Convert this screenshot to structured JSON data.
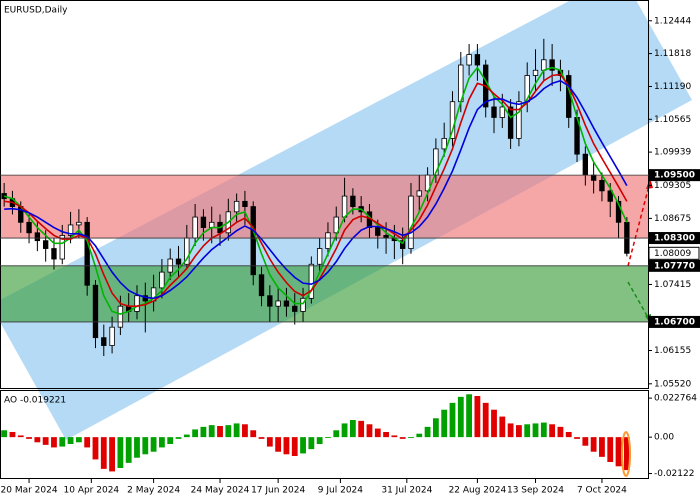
{
  "chart_data": [
    {
      "type": "candlestick",
      "title": "EURUSD,Daily",
      "candles": {
        "open": [
          1.0915,
          1.0905,
          1.089,
          1.086,
          1.084,
          1.0825,
          1.081,
          1.079,
          1.0835,
          1.0855,
          1.086,
          1.074,
          1.064,
          1.0625,
          1.066,
          1.07,
          1.069,
          1.072,
          1.071,
          1.0735,
          1.0765,
          1.079,
          1.078,
          1.083,
          1.087,
          1.085,
          1.086,
          1.084,
          1.088,
          1.09,
          1.089,
          1.076,
          1.072,
          1.07,
          1.071,
          1.07,
          1.069,
          1.0715,
          1.078,
          1.081,
          1.084,
          1.087,
          1.091,
          1.089,
          1.088,
          1.085,
          1.0835,
          1.083,
          1.0825,
          1.081,
          1.091,
          1.092,
          1.095,
          1.1,
          1.102,
          1.109,
          1.116,
          1.118,
          1.116,
          1.108,
          1.106,
          1.108,
          1.102,
          1.109,
          1.114,
          1.115,
          1.117,
          1.115,
          1.114,
          1.106,
          1.099,
          1.095,
          1.094,
          1.092,
          1.09,
          1.086
        ],
        "high": [
          1.0935,
          1.092,
          1.09,
          1.0875,
          1.086,
          1.0845,
          1.083,
          1.0855,
          1.088,
          1.0885,
          1.087,
          1.075,
          1.0665,
          1.068,
          1.072,
          1.0725,
          1.074,
          1.0745,
          1.076,
          1.079,
          1.081,
          1.0815,
          1.0855,
          1.0895,
          1.0885,
          1.089,
          1.0875,
          1.0905,
          1.0915,
          1.092,
          1.09,
          1.0775,
          1.074,
          1.0735,
          1.0735,
          1.0725,
          1.0735,
          1.0795,
          1.083,
          1.086,
          1.089,
          1.0945,
          1.0925,
          1.091,
          1.0895,
          1.0865,
          1.086,
          1.0855,
          1.085,
          1.0935,
          1.095,
          1.0965,
          1.102,
          1.105,
          1.111,
          1.1185,
          1.12,
          1.12,
          1.117,
          1.11,
          1.1105,
          1.1095,
          1.111,
          1.1165,
          1.119,
          1.121,
          1.12,
          1.117,
          1.115,
          1.1075,
          1.1005,
          1.0975,
          1.0955,
          1.0935,
          1.091,
          1.087
        ],
        "low": [
          1.089,
          1.0875,
          1.084,
          1.082,
          1.0805,
          1.0785,
          1.077,
          1.078,
          1.082,
          1.083,
          1.072,
          1.062,
          1.0605,
          1.061,
          1.0645,
          1.067,
          1.0675,
          1.065,
          1.069,
          1.0715,
          1.075,
          1.0755,
          1.077,
          1.0815,
          1.0825,
          1.082,
          1.0815,
          1.0825,
          1.086,
          1.0855,
          1.074,
          1.07,
          1.067,
          1.067,
          1.068,
          1.0665,
          1.067,
          1.0705,
          1.0765,
          1.0795,
          1.0825,
          1.086,
          1.0875,
          1.086,
          1.083,
          1.081,
          1.08,
          1.079,
          1.078,
          1.08,
          1.088,
          1.09,
          1.0935,
          1.0985,
          1.1005,
          1.107,
          1.114,
          1.113,
          1.106,
          1.103,
          1.104,
          1.1,
          1.1005,
          1.107,
          1.111,
          1.113,
          1.112,
          1.111,
          1.104,
          1.0975,
          1.093,
          1.0915,
          1.09,
          1.087,
          1.083,
          1.0795
        ],
        "close": [
          1.0905,
          1.089,
          1.086,
          1.084,
          1.0825,
          1.081,
          1.079,
          1.0835,
          1.0855,
          1.086,
          1.074,
          1.064,
          1.0625,
          1.066,
          1.07,
          1.069,
          1.072,
          1.071,
          1.0735,
          1.0765,
          1.079,
          1.078,
          1.083,
          1.087,
          1.085,
          1.086,
          1.084,
          1.088,
          1.09,
          1.089,
          1.076,
          1.072,
          1.07,
          1.071,
          1.07,
          1.069,
          1.0715,
          1.078,
          1.081,
          1.084,
          1.087,
          1.091,
          1.089,
          1.088,
          1.085,
          1.0835,
          1.083,
          1.0825,
          1.081,
          1.091,
          1.092,
          1.095,
          1.1,
          1.102,
          1.109,
          1.116,
          1.118,
          1.116,
          1.108,
          1.106,
          1.108,
          1.102,
          1.109,
          1.114,
          1.115,
          1.117,
          1.115,
          1.114,
          1.106,
          1.099,
          1.095,
          1.094,
          1.092,
          1.09,
          1.086,
          1.08009
        ]
      },
      "series": [
        {
          "color": "#00b400",
          "values": [
            1.091,
            1.0905,
            1.089,
            1.087,
            1.085,
            1.0835,
            1.082,
            1.082,
            1.083,
            1.0845,
            1.0825,
            1.0775,
            1.072,
            1.069,
            1.0685,
            1.069,
            1.07,
            1.0705,
            1.0715,
            1.073,
            1.0755,
            1.077,
            1.079,
            1.082,
            1.084,
            1.085,
            1.085,
            1.086,
            1.0875,
            1.088,
            1.0845,
            1.08,
            1.076,
            1.0735,
            1.072,
            1.0705,
            1.0705,
            1.073,
            1.0765,
            1.08,
            1.0835,
            1.087,
            1.0885,
            1.0885,
            1.087,
            1.0855,
            1.084,
            1.083,
            1.082,
            1.085,
            1.088,
            1.0915,
            1.0955,
            1.099,
            1.1035,
            1.109,
            1.1135,
            1.1155,
            1.113,
            1.11,
            1.1085,
            1.106,
            1.107,
            1.1095,
            1.1125,
            1.115,
            1.1155,
            1.115,
            1.1115,
            1.106,
            1.101,
            1.0975,
            1.095,
            1.0925,
            1.0895,
            1.086
          ]
        },
        {
          "color": "#d00000",
          "values": [
            1.09,
            1.0898,
            1.089,
            1.0878,
            1.0862,
            1.0848,
            1.0835,
            1.0828,
            1.0828,
            1.0835,
            1.083,
            1.08,
            1.076,
            1.0725,
            1.0705,
            1.07,
            1.07,
            1.0703,
            1.071,
            1.0722,
            1.074,
            1.0755,
            1.0772,
            1.0795,
            1.0815,
            1.083,
            1.0838,
            1.0848,
            1.086,
            1.0868,
            1.085,
            1.082,
            1.079,
            1.0765,
            1.0745,
            1.0728,
            1.072,
            1.073,
            1.0752,
            1.078,
            1.081,
            1.0845,
            1.0865,
            1.0872,
            1.0868,
            1.0858,
            1.0848,
            1.0838,
            1.0828,
            1.0845,
            1.0865,
            1.0893,
            1.0928,
            1.0962,
            1.1,
            1.105,
            1.1095,
            1.1125,
            1.112,
            1.1105,
            1.1092,
            1.1075,
            1.1075,
            1.1088,
            1.111,
            1.113,
            1.114,
            1.1142,
            1.112,
            1.1085,
            1.1045,
            1.101,
            1.0982,
            1.0955,
            1.0928,
            1.09
          ]
        },
        {
          "color": "#0000dd",
          "values": [
            1.0885,
            1.0886,
            1.0884,
            1.0878,
            1.087,
            1.086,
            1.085,
            1.0842,
            1.0838,
            1.0838,
            1.0833,
            1.0815,
            1.079,
            1.0765,
            1.0745,
            1.073,
            1.0722,
            1.0717,
            1.0715,
            1.072,
            1.073,
            1.0742,
            1.0756,
            1.0774,
            1.0792,
            1.0808,
            1.082,
            1.0832,
            1.0844,
            1.0853,
            1.0845,
            1.0828,
            1.0808,
            1.0788,
            1.077,
            1.0755,
            1.0744,
            1.0742,
            1.075,
            1.0765,
            1.0785,
            1.081,
            1.083,
            1.0845,
            1.0852,
            1.0852,
            1.0848,
            1.0842,
            1.0835,
            1.084,
            1.0852,
            1.087,
            1.0895,
            1.0925,
            1.0958,
            1.0998,
            1.104,
            1.1075,
            1.109,
            1.1095,
            1.1095,
            1.1088,
            1.1085,
            1.109,
            1.11,
            1.1115,
            1.1125,
            1.113,
            1.112,
            1.1098,
            1.107,
            1.104,
            1.1012,
            1.0985,
            1.0958,
            1.093
          ]
        }
      ],
      "levels": [
        {
          "value": 1.095,
          "label": "1.09500"
        },
        {
          "value": 1.083,
          "label": "1.08300"
        },
        {
          "value": 1.0777,
          "label": "1.07770"
        },
        {
          "value": 1.067,
          "label": "1.06700"
        }
      ],
      "zone_colors": [
        "#f07878",
        "#3f9f3f"
      ],
      "ylim": [
        1.0544,
        1.1284
      ],
      "yticks": [
        1.12444,
        1.11818,
        {
          "value": 1.1119,
          "label": "1.11190"
        },
        1.10565,
        1.09939,
        1.09305,
        1.08675,
        1.07415,
        1.06155,
        {
          "value": 1.0552,
          "label": "1.05520"
        }
      ],
      "xlim": [
        -0.5,
        75.5
      ],
      "xticks": [
        {
          "value": 3,
          "label": "20 Mar 2024"
        },
        {
          "value": 10.5,
          "label": "10 Apr 2024"
        },
        {
          "value": 18,
          "label": "2 May 2024"
        },
        {
          "value": 26,
          "label": "24 May 2024"
        },
        {
          "value": 33,
          "label": "17 Jun 2024"
        },
        {
          "value": 40.5,
          "label": "9 Jul 2024"
        },
        {
          "value": 48.5,
          "label": "31 Jul 2024"
        },
        {
          "value": 57,
          "label": "22 Aug 2024"
        },
        {
          "value": 64,
          "label": "13 Sep 2024"
        },
        {
          "value": 72,
          "label": "7 Oct 2024"
        }
      ]
    },
    {
      "type": "bar",
      "title": "AO -0.019221",
      "up_color": "#00a000",
      "down_color": "#e00000",
      "values": [
        0.004,
        0.003,
        0.001,
        -0.001,
        -0.003,
        -0.0045,
        -0.006,
        -0.0055,
        -0.004,
        -0.003,
        -0.006,
        -0.013,
        -0.0185,
        -0.02,
        -0.018,
        -0.015,
        -0.012,
        -0.01,
        -0.0085,
        -0.006,
        -0.004,
        -0.001,
        0.0015,
        0.0045,
        0.006,
        0.007,
        0.0065,
        0.007,
        0.008,
        0.0075,
        0.004,
        -0.001,
        -0.0055,
        -0.0085,
        -0.01,
        -0.011,
        -0.0095,
        -0.007,
        -0.004,
        -0.0005,
        0.004,
        0.008,
        0.01,
        0.0095,
        0.0075,
        0.005,
        0.003,
        0.001,
        -0.001,
        -0.0005,
        0.002,
        0.006,
        0.011,
        0.016,
        0.02,
        0.0235,
        0.025,
        0.024,
        0.02,
        0.016,
        0.012,
        0.008,
        0.007,
        0.0075,
        0.008,
        0.0085,
        0.0075,
        0.006,
        0.003,
        -0.001,
        -0.005,
        -0.0085,
        -0.0115,
        -0.0145,
        -0.017,
        -0.019221
      ],
      "ylim": [
        -0.025,
        0.0275
      ],
      "yticks": [
        0.022764,
        {
          "value": 0,
          "label": "0.00"
        },
        -0.02122
      ]
    }
  ]
}
